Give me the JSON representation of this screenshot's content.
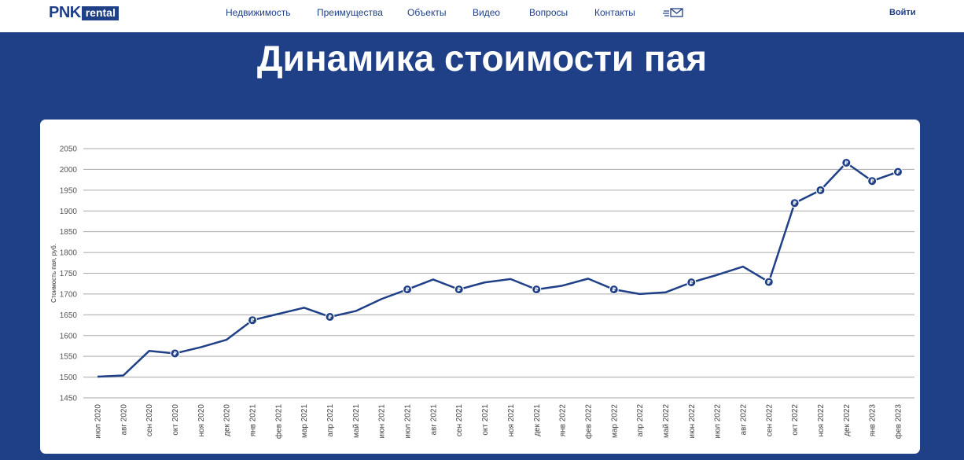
{
  "header": {
    "logo": {
      "brand": "PNK",
      "suffix": "rental"
    },
    "nav": [
      "Недвижимость",
      "Преимущества",
      "Объекты",
      "Видео",
      "Вопросы",
      "Контакты"
    ],
    "mail_icon": "mail-icon",
    "login_label": "Войти"
  },
  "page": {
    "title": "Динамика стоимости пая"
  },
  "colors": {
    "brand": "#1f3f87",
    "background": "#1f3f87",
    "card": "#ffffff",
    "grid": "#aaaaaa"
  },
  "chart_data": {
    "type": "line",
    "title": "",
    "xlabel": "",
    "ylabel": "Стоимость пая, руб.",
    "ylim": [
      1450,
      2050
    ],
    "yticks": [
      1450,
      1500,
      1550,
      1600,
      1650,
      1700,
      1750,
      1800,
      1850,
      1900,
      1950,
      2000,
      2050
    ],
    "grid": true,
    "marker_label": "₽",
    "categories": [
      "июл 2020",
      "авг 2020",
      "сен 2020",
      "окт 2020",
      "ноя 2020",
      "дек 2020",
      "янв 2021",
      "фев 2021",
      "мар 2021",
      "апр 2021",
      "май 2021",
      "июн 2021",
      "июл 2021",
      "авг 2021",
      "сен 2021",
      "окт 2021",
      "ноя 2021",
      "дек 2021",
      "янв 2022",
      "фев 2022",
      "мар 2022",
      "апр 2022",
      "май 2022",
      "июн 2022",
      "июл 2022",
      "авг 2022",
      "сен 2022",
      "окт 2022",
      "ноя 2022",
      "дек 2022",
      "янв 2023",
      "фев 2023"
    ],
    "series": [
      {
        "values": [
          1501,
          1504,
          1563,
          1557,
          1572,
          1590,
          1637,
          1652,
          1667,
          1645,
          1659,
          1688,
          1711,
          1735,
          1711,
          1728,
          1736,
          1711,
          1720,
          1737,
          1711,
          1700,
          1704,
          1728,
          1746,
          1766,
          1729,
          1919,
          1950,
          2016,
          1972,
          1994
        ],
        "markers": [
          false,
          false,
          false,
          true,
          false,
          false,
          true,
          false,
          false,
          true,
          false,
          false,
          true,
          false,
          true,
          false,
          false,
          true,
          false,
          false,
          true,
          false,
          false,
          true,
          false,
          false,
          true,
          true,
          true,
          true,
          true,
          true
        ],
        "color": "#1f3f87"
      }
    ]
  }
}
